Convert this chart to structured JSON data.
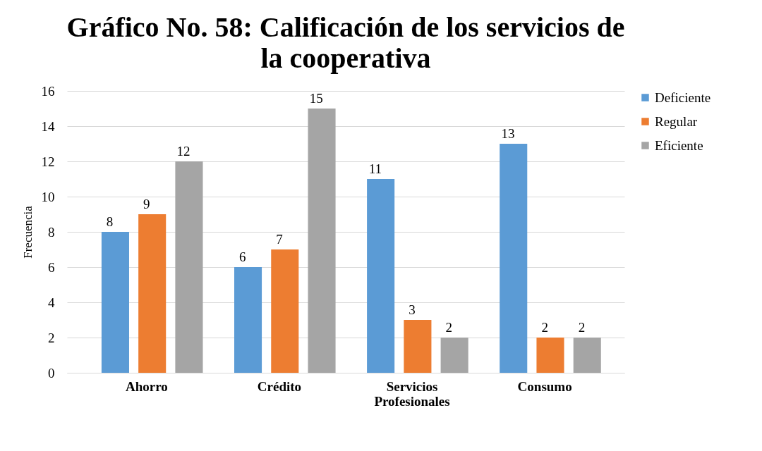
{
  "chart_data": {
    "type": "bar",
    "title": "Gráfico No. 58: Calificación de los servicios de la cooperativa",
    "ylabel": "Frecuencia",
    "categories": [
      "Ahorro",
      "Crédito",
      "Servicios Profesionales",
      "Consumo"
    ],
    "series": [
      {
        "name": "Deficiente",
        "color": "#5b9bd5",
        "values": [
          8,
          6,
          11,
          13
        ]
      },
      {
        "name": "Regular",
        "color": "#ed7d31",
        "values": [
          9,
          7,
          3,
          2
        ]
      },
      {
        "name": "Eficiente",
        "color": "#a5a5a5",
        "values": [
          12,
          15,
          2,
          2
        ]
      }
    ],
    "ylim": [
      0,
      16
    ],
    "yticks": [
      0,
      2,
      4,
      6,
      8,
      10,
      12,
      14,
      16
    ],
    "grid": "y",
    "legend": "right",
    "data_labels": true
  }
}
